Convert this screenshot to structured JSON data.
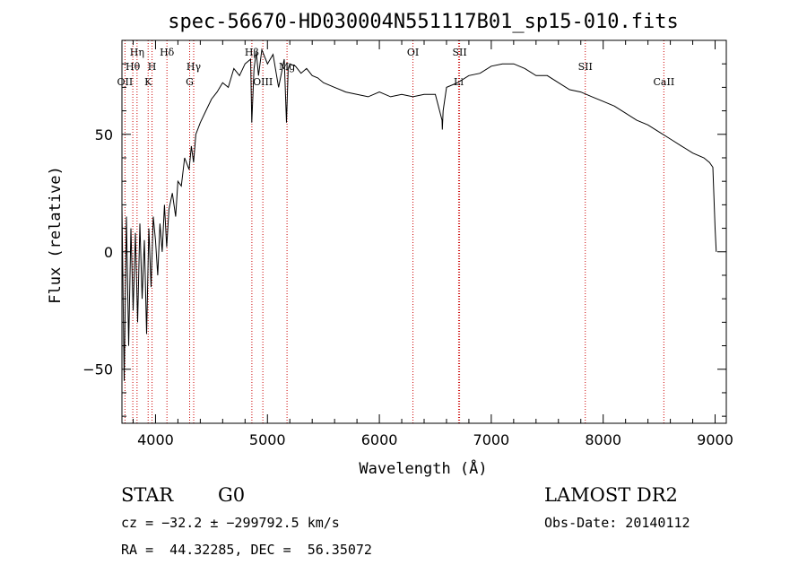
{
  "chart_data": {
    "type": "line",
    "title": "spec-56670-HD030004N551117B01_sp15-010.fits",
    "xlabel": "Wavelength (Å)",
    "ylabel": "Flux (relative)",
    "xlim": [
      3700,
      9100
    ],
    "ylim": [
      -73,
      90
    ],
    "x_ticks": [
      4000,
      5000,
      6000,
      7000,
      8000,
      9000
    ],
    "y_ticks": [
      -50,
      0,
      50
    ],
    "grid": false,
    "line_color": "#000000",
    "marker_color": "#cc0000",
    "series": [
      {
        "x": [
          3700,
          3720,
          3740,
          3760,
          3780,
          3800,
          3820,
          3840,
          3860,
          3880,
          3900,
          3920,
          3940,
          3960,
          3980,
          4000,
          4020,
          4040,
          4060,
          4080,
          4100,
          4120,
          4150,
          4180,
          4200,
          4230,
          4260,
          4300,
          4320,
          4340,
          4360,
          4400,
          4450,
          4500,
          4550,
          4600,
          4650,
          4700,
          4750,
          4800,
          4850,
          4860,
          4880,
          4900,
          4920,
          4950,
          5000,
          5050,
          5100,
          5150,
          5170,
          5185,
          5200,
          5250,
          5300,
          5350,
          5400,
          5450,
          5500,
          5600,
          5700,
          5800,
          5900,
          6000,
          6100,
          6200,
          6300,
          6400,
          6500,
          6560,
          6563,
          6570,
          6600,
          6700,
          6800,
          6900,
          7000,
          7100,
          7200,
          7300,
          7400,
          7500,
          7600,
          7700,
          7800,
          7900,
          8000,
          8100,
          8200,
          8300,
          8400,
          8500,
          8600,
          8700,
          8800,
          8900,
          8950,
          8980,
          9000,
          9010
        ],
        "y": [
          20,
          -55,
          15,
          -40,
          10,
          -25,
          8,
          -30,
          12,
          -20,
          5,
          -35,
          10,
          -15,
          15,
          5,
          -10,
          12,
          0,
          20,
          2,
          18,
          25,
          15,
          30,
          28,
          40,
          35,
          45,
          38,
          50,
          55,
          60,
          65,
          68,
          72,
          70,
          78,
          75,
          80,
          82,
          55,
          78,
          85,
          75,
          86,
          80,
          84,
          70,
          82,
          55,
          78,
          80,
          79,
          76,
          78,
          75,
          74,
          72,
          70,
          68,
          67,
          66,
          68,
          66,
          67,
          66,
          67,
          67,
          56,
          52,
          60,
          70,
          72,
          75,
          76,
          79,
          80,
          80,
          78,
          75,
          75,
          72,
          69,
          68,
          66,
          64,
          62,
          59,
          56,
          54,
          51,
          48,
          45,
          42,
          40,
          38,
          36,
          10,
          0
        ]
      }
    ],
    "line_markers": [
      {
        "label": "Hη",
        "x": 3835,
        "row": 0
      },
      {
        "label": "Hθ",
        "x": 3797,
        "row": 1
      },
      {
        "label": "OII",
        "x": 3727,
        "row": 2
      },
      {
        "label": "H",
        "x": 3969,
        "row": 1
      },
      {
        "label": "K",
        "x": 3934,
        "row": 2
      },
      {
        "label": "Hδ",
        "x": 4102,
        "row": 0
      },
      {
        "label": "Hγ",
        "x": 4341,
        "row": 1
      },
      {
        "label": "G",
        "x": 4305,
        "row": 2
      },
      {
        "label": "Hβ",
        "x": 4861,
        "row": 0
      },
      {
        "label": "OIII",
        "x": 4959,
        "row": 2
      },
      {
        "label": "Mg",
        "x": 5175,
        "row": 1
      },
      {
        "label": "OI",
        "x": 6300,
        "row": 0
      },
      {
        "label": "SII",
        "x": 6717,
        "row": 0
      },
      {
        "label": "Li",
        "x": 6708,
        "row": 2
      },
      {
        "label": "SII",
        "x": 7840,
        "row": 1
      },
      {
        "label": "CaII",
        "x": 8542,
        "row": 2
      }
    ]
  },
  "info": {
    "object_class": "STAR",
    "subclass": "G0",
    "survey": "LAMOST DR2",
    "cz": "cz = −32.2 ± −299792.5 km/s",
    "obs_date": "Obs-Date: 20140112",
    "coords": "RA =  44.32285, DEC =  56.35072"
  }
}
